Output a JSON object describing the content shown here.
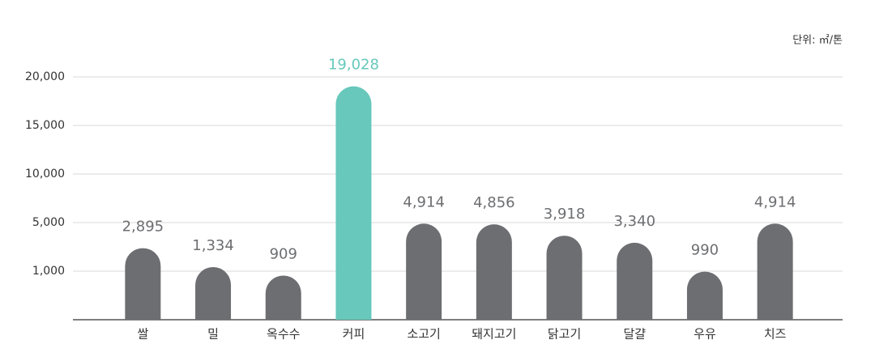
{
  "chart_data": {
    "type": "bar",
    "unit": "단위: ㎡/톤",
    "categories": [
      "쌀",
      "밀",
      "옥수수",
      "커피",
      "소고기",
      "돼지고기",
      "닭고기",
      "달걀",
      "우유",
      "치즈"
    ],
    "values": [
      2895,
      1334,
      909,
      19028,
      4914,
      4856,
      3918,
      3340,
      990,
      4914
    ],
    "value_labels": [
      "2,895",
      "1,334",
      "909",
      "19,028",
      "4,914",
      "4,856",
      "3,918",
      "3,340",
      "990",
      "4,914"
    ],
    "colors": [
      "#6d6e71",
      "#6d6e71",
      "#6d6e71",
      "#67c8bb",
      "#6d6e71",
      "#6d6e71",
      "#6d6e71",
      "#6d6e71",
      "#6d6e71",
      "#6d6e71"
    ],
    "ylim": [
      0,
      20000
    ],
    "yticks": [
      {
        "value": 1000,
        "label": "1,000"
      },
      {
        "value": 5000,
        "label": "5,000"
      },
      {
        "value": 10000,
        "label": "10,000"
      },
      {
        "value": 15000,
        "label": "15,000"
      },
      {
        "value": 20000,
        "label": "20,000"
      }
    ],
    "grid": true
  }
}
